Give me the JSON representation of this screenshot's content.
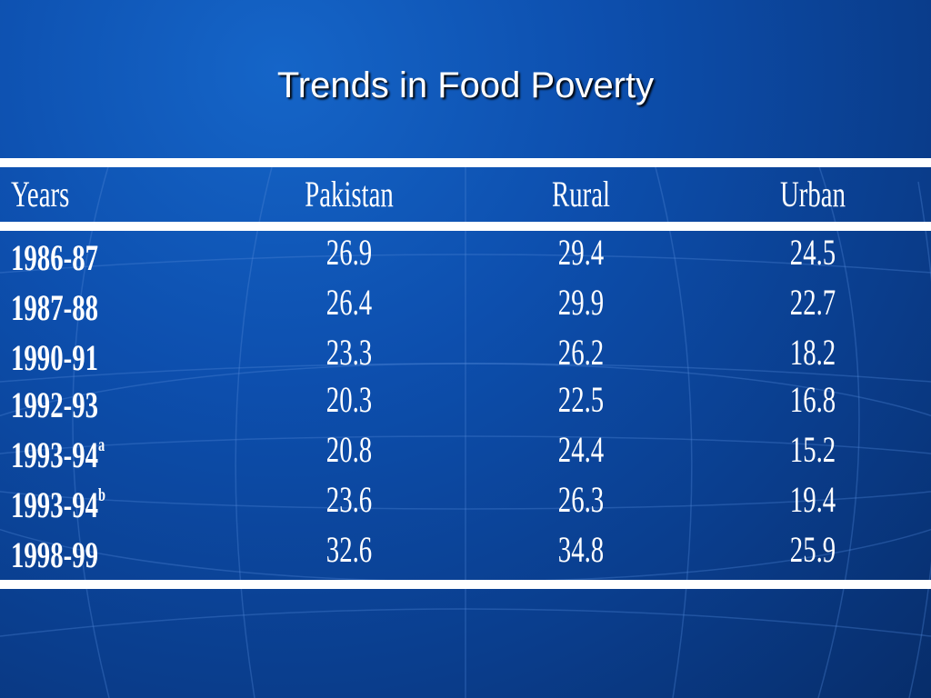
{
  "slide": {
    "title": "Trends in Food Poverty"
  },
  "table": {
    "headers": [
      "Years",
      "Pakistan",
      "Rural",
      "Urban"
    ],
    "rows": [
      {
        "year": "1986-87",
        "sup": "",
        "pakistan": "26.9",
        "rural": "29.4",
        "urban": "24.5"
      },
      {
        "year": "1987-88",
        "sup": "",
        "pakistan": "26.4",
        "rural": "29.9",
        "urban": "22.7"
      },
      {
        "year": "1990-91",
        "sup": "",
        "pakistan": "23.3",
        "rural": "26.2",
        "urban": "18.2"
      },
      {
        "year": "1992-93",
        "sup": "",
        "pakistan": "20.3",
        "rural": "22.5",
        "urban": "16.8"
      },
      {
        "year": "1993-94",
        "sup": "a",
        "pakistan": "20.8",
        "rural": "24.4",
        "urban": "15.2"
      },
      {
        "year": "1993-94",
        "sup": "b",
        "pakistan": "23.6",
        "rural": "26.3",
        "urban": "19.4"
      },
      {
        "year": "1998-99",
        "sup": "",
        "pakistan": "32.6",
        "rural": "34.8",
        "urban": "25.9"
      }
    ]
  }
}
